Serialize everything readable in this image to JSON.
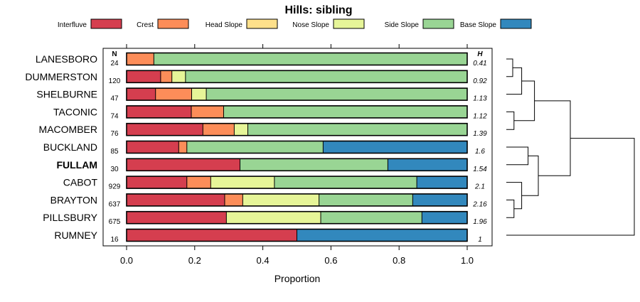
{
  "chart_data": {
    "type": "bar",
    "orientation": "horizontal-stacked",
    "title": "Hills: sibling",
    "xlabel": "Proportion",
    "xlim": [
      0,
      1
    ],
    "x_ticks": [
      0.0,
      0.2,
      0.4,
      0.6,
      0.8,
      1.0
    ],
    "x_tick_labels": [
      "0.0",
      "0.2",
      "0.4",
      "0.6",
      "0.8",
      "1.0"
    ],
    "n_header": "N",
    "h_header": "H",
    "legend": [
      {
        "name": "Interfluve",
        "color": "#d53e4f"
      },
      {
        "name": "Crest",
        "color": "#fc8d59"
      },
      {
        "name": "Head Slope",
        "color": "#fee08b"
      },
      {
        "name": "Nose Slope",
        "color": "#e6f598"
      },
      {
        "name": "Side Slope",
        "color": "#99d594"
      },
      {
        "name": "Base Slope",
        "color": "#3288bd"
      }
    ],
    "rows": [
      {
        "name": "LANESBORO",
        "n": "24",
        "h": "0.41",
        "bold": false,
        "values": [
          0.0,
          0.08,
          0.0,
          0.0,
          0.92,
          0.0
        ]
      },
      {
        "name": "DUMMERSTON",
        "n": "120",
        "h": "0.92",
        "bold": false,
        "values": [
          0.1,
          0.033,
          0.0,
          0.04,
          0.827,
          0.0
        ]
      },
      {
        "name": "SHELBURNE",
        "n": "47",
        "h": "1.13",
        "bold": false,
        "values": [
          0.085,
          0.106,
          0.0,
          0.043,
          0.766,
          0.0
        ]
      },
      {
        "name": "TACONIC",
        "n": "74",
        "h": "1.12",
        "bold": false,
        "values": [
          0.19,
          0.095,
          0.0,
          0.0,
          0.715,
          0.0
        ]
      },
      {
        "name": "MACOMBER",
        "n": "76",
        "h": "1.39",
        "bold": false,
        "values": [
          0.224,
          0.092,
          0.0,
          0.04,
          0.644,
          0.0
        ]
      },
      {
        "name": "BUCKLAND",
        "n": "85",
        "h": "1.6",
        "bold": false,
        "values": [
          0.153,
          0.024,
          0.0,
          0.0,
          0.4,
          0.423
        ]
      },
      {
        "name": "FULLAM",
        "n": "30",
        "h": "1.54",
        "bold": true,
        "values": [
          0.333,
          0.0,
          0.0,
          0.0,
          0.434,
          0.233
        ]
      },
      {
        "name": "CABOT",
        "n": "929",
        "h": "2.1",
        "bold": false,
        "values": [
          0.177,
          0.07,
          0.0,
          0.187,
          0.418,
          0.148
        ]
      },
      {
        "name": "BRAYTON",
        "n": "637",
        "h": "2.16",
        "bold": false,
        "values": [
          0.288,
          0.053,
          0.0,
          0.224,
          0.275,
          0.16
        ]
      },
      {
        "name": "PILLSBURY",
        "n": "675",
        "h": "1.96",
        "bold": false,
        "values": [
          0.293,
          0.0,
          0.0,
          0.277,
          0.297,
          0.133
        ]
      },
      {
        "name": "RUMNEY",
        "n": "16",
        "h": "1",
        "bold": false,
        "values": [
          0.5,
          0.0,
          0.0,
          0.0,
          0.0,
          0.5
        ]
      }
    ],
    "dendrogram": {
      "type": "hierarchical-clustering",
      "leaf_order": [
        "LANESBORO",
        "DUMMERSTON",
        "SHELBURNE",
        "TACONIC",
        "MACOMBER",
        "BUCKLAND",
        "FULLAM",
        "CABOT",
        "BRAYTON",
        "PILLSBURY",
        "RUMNEY"
      ],
      "merges": [
        {
          "a": "LANESBORO",
          "b": "DUMMERSTON",
          "height": 0.05
        },
        {
          "a": "merge:0",
          "b": "SHELBURNE",
          "height": 0.12
        },
        {
          "a": "TACONIC",
          "b": "MACOMBER",
          "height": 0.06
        },
        {
          "a": "merge:1",
          "b": "merge:2",
          "height": 0.22
        },
        {
          "a": "BUCKLAND",
          "b": "FULLAM",
          "height": 0.17
        },
        {
          "a": "BRAYTON",
          "b": "PILLSBURY",
          "height": 0.06
        },
        {
          "a": "CABOT",
          "b": "merge:5",
          "height": 0.12
        },
        {
          "a": "merge:4",
          "b": "merge:6",
          "height": 0.25
        },
        {
          "a": "merge:3",
          "b": "merge:7",
          "height": 0.5
        },
        {
          "a": "merge:8",
          "b": "RUMNEY",
          "height": 1.0
        }
      ]
    }
  }
}
